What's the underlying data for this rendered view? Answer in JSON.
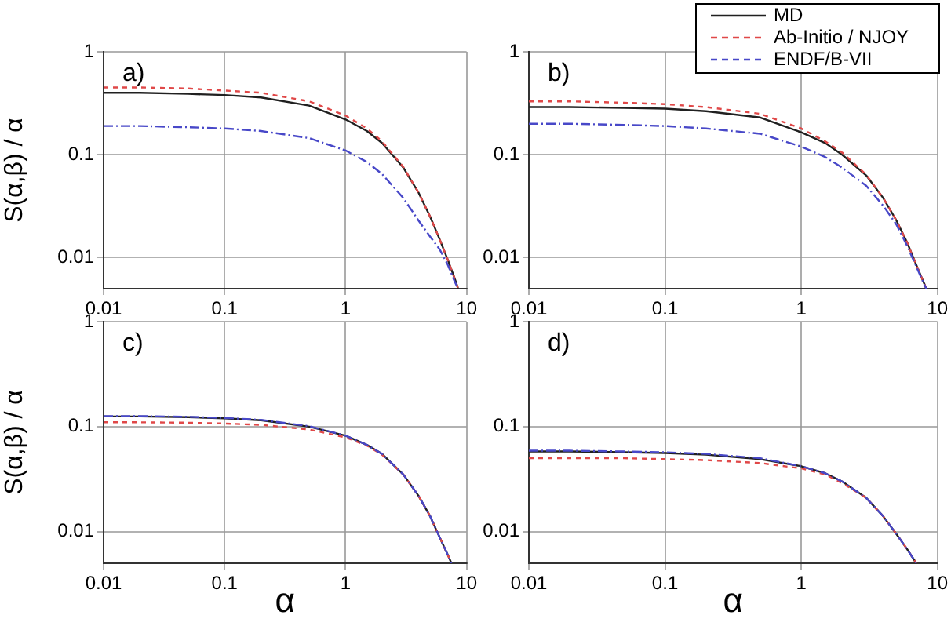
{
  "chart_data": [
    {
      "type": "line",
      "ylabel": "S(α,β) / α",
      "annotations": [
        "a)"
      ],
      "log": "xy",
      "grid": true,
      "xlim": [
        0.01,
        10
      ],
      "ylim": [
        0.005,
        1
      ],
      "xticks": [
        0.01,
        0.1,
        1,
        10
      ],
      "yticks": [
        0.01,
        0.1,
        1
      ],
      "series": [
        {
          "color": "#202020",
          "line_style": "solid",
          "x": [
            0.01,
            0.02,
            0.05,
            0.1,
            0.2,
            0.5,
            1,
            1.5,
            2,
            3,
            4,
            5,
            6,
            7,
            8,
            8.5
          ],
          "values": [
            0.4,
            0.4,
            0.39,
            0.38,
            0.36,
            0.3,
            0.22,
            0.17,
            0.13,
            0.075,
            0.043,
            0.025,
            0.015,
            0.0095,
            0.0062,
            0.005
          ]
        },
        {
          "color": "#e04848",
          "line_style": "dashed",
          "x": [
            0.01,
            0.02,
            0.05,
            0.1,
            0.2,
            0.5,
            1,
            1.5,
            2,
            3,
            4,
            5,
            6,
            7,
            8,
            8.5
          ],
          "values": [
            0.45,
            0.45,
            0.44,
            0.42,
            0.4,
            0.33,
            0.24,
            0.18,
            0.135,
            0.076,
            0.043,
            0.025,
            0.015,
            0.0095,
            0.0062,
            0.005
          ]
        },
        {
          "color": "#4848c8",
          "line_style": "dashed",
          "x": [
            0.01,
            0.02,
            0.05,
            0.1,
            0.2,
            0.5,
            1,
            1.5,
            2,
            3,
            4,
            5,
            6,
            7,
            8,
            8.5
          ],
          "values": [
            0.19,
            0.19,
            0.185,
            0.18,
            0.17,
            0.145,
            0.11,
            0.085,
            0.065,
            0.038,
            0.023,
            0.016,
            0.012,
            0.0085,
            0.0058,
            0.005
          ]
        }
      ]
    },
    {
      "type": "line",
      "annotations": [
        "b)"
      ],
      "log": "xy",
      "grid": true,
      "legend": "top right",
      "xlim": [
        0.01,
        10
      ],
      "ylim": [
        0.005,
        1
      ],
      "xticks": [
        0.01,
        0.1,
        1,
        10
      ],
      "yticks": [
        0.01,
        0.1,
        1
      ],
      "series": [
        {
          "name": "MD",
          "color": "#202020",
          "line_style": "solid",
          "x": [
            0.01,
            0.02,
            0.05,
            0.1,
            0.2,
            0.5,
            1,
            1.5,
            2,
            3,
            4,
            5,
            6,
            7,
            8,
            8.3
          ],
          "values": [
            0.29,
            0.29,
            0.285,
            0.28,
            0.265,
            0.23,
            0.165,
            0.13,
            0.1,
            0.063,
            0.038,
            0.023,
            0.014,
            0.0085,
            0.0056,
            0.005
          ]
        },
        {
          "name": "Ab-Initio / NJOY",
          "color": "#e04848",
          "line_style": "dashed",
          "x": [
            0.01,
            0.02,
            0.05,
            0.1,
            0.2,
            0.5,
            1,
            1.5,
            2,
            3,
            4,
            5,
            6,
            7,
            8,
            8.3
          ],
          "values": [
            0.33,
            0.33,
            0.32,
            0.31,
            0.29,
            0.25,
            0.18,
            0.135,
            0.105,
            0.064,
            0.038,
            0.023,
            0.014,
            0.0085,
            0.0056,
            0.005
          ]
        },
        {
          "name": "ENDF/B-VII",
          "color": "#4848c8",
          "line_style": "dashed",
          "x": [
            0.01,
            0.02,
            0.05,
            0.1,
            0.2,
            0.5,
            1,
            1.5,
            2,
            3,
            4,
            5,
            6,
            7,
            8,
            8.3
          ],
          "values": [
            0.2,
            0.2,
            0.195,
            0.19,
            0.18,
            0.16,
            0.12,
            0.095,
            0.075,
            0.05,
            0.032,
            0.021,
            0.013,
            0.0082,
            0.0055,
            0.005
          ]
        }
      ]
    },
    {
      "type": "line",
      "ylabel": "S(α,β) / α",
      "xlabel": "α",
      "annotations": [
        "c)"
      ],
      "log": "xy",
      "grid": true,
      "xlim": [
        0.01,
        10
      ],
      "ylim": [
        0.005,
        1
      ],
      "xticks": [
        0.01,
        0.1,
        1,
        10
      ],
      "yticks": [
        0.01,
        0.1,
        1
      ],
      "series": [
        {
          "color": "#202020",
          "line_style": "solid",
          "x": [
            0.01,
            0.02,
            0.05,
            0.1,
            0.2,
            0.5,
            1,
            1.5,
            2,
            3,
            4,
            5,
            6,
            7,
            7.5
          ],
          "values": [
            0.125,
            0.125,
            0.123,
            0.12,
            0.115,
            0.1,
            0.082,
            0.067,
            0.055,
            0.035,
            0.022,
            0.014,
            0.0088,
            0.006,
            0.005
          ]
        },
        {
          "color": "#e04848",
          "line_style": "dashed",
          "x": [
            0.01,
            0.02,
            0.05,
            0.1,
            0.2,
            0.5,
            1,
            1.5,
            2,
            3,
            4,
            5,
            6,
            7,
            7.5
          ],
          "values": [
            0.11,
            0.11,
            0.109,
            0.107,
            0.104,
            0.094,
            0.079,
            0.066,
            0.054,
            0.035,
            0.022,
            0.014,
            0.0088,
            0.006,
            0.005
          ]
        },
        {
          "color": "#4848c8",
          "line_style": "dashed",
          "x": [
            0.01,
            0.02,
            0.05,
            0.1,
            0.2,
            0.5,
            1,
            1.5,
            2,
            3,
            4,
            5,
            6,
            7,
            7.5
          ],
          "values": [
            0.126,
            0.126,
            0.124,
            0.121,
            0.116,
            0.101,
            0.082,
            0.067,
            0.055,
            0.035,
            0.022,
            0.014,
            0.0088,
            0.006,
            0.005
          ]
        }
      ]
    },
    {
      "type": "line",
      "xlabel": "α",
      "annotations": [
        "d)"
      ],
      "log": "xy",
      "grid": true,
      "xlim": [
        0.01,
        10
      ],
      "ylim": [
        0.005,
        1
      ],
      "xticks": [
        0.01,
        0.1,
        1,
        10
      ],
      "yticks": [
        0.01,
        0.1,
        1
      ],
      "series": [
        {
          "color": "#202020",
          "line_style": "solid",
          "x": [
            0.01,
            0.02,
            0.05,
            0.1,
            0.2,
            0.5,
            1,
            1.5,
            2,
            3,
            4,
            5,
            6,
            7
          ],
          "values": [
            0.058,
            0.058,
            0.057,
            0.056,
            0.054,
            0.049,
            0.042,
            0.036,
            0.03,
            0.021,
            0.014,
            0.0095,
            0.0068,
            0.005
          ]
        },
        {
          "color": "#e04848",
          "line_style": "dashed",
          "x": [
            0.01,
            0.02,
            0.05,
            0.1,
            0.2,
            0.5,
            1,
            1.5,
            2,
            3,
            4,
            5,
            6,
            7
          ],
          "values": [
            0.05,
            0.05,
            0.05,
            0.049,
            0.048,
            0.045,
            0.04,
            0.035,
            0.029,
            0.021,
            0.014,
            0.0095,
            0.0068,
            0.005
          ]
        },
        {
          "color": "#4848c8",
          "line_style": "dashed",
          "x": [
            0.01,
            0.02,
            0.05,
            0.1,
            0.2,
            0.5,
            1,
            1.5,
            2,
            3,
            4,
            5,
            6,
            7
          ],
          "values": [
            0.059,
            0.059,
            0.058,
            0.057,
            0.055,
            0.05,
            0.042,
            0.036,
            0.03,
            0.021,
            0.014,
            0.0095,
            0.0068,
            0.005
          ]
        }
      ]
    }
  ]
}
